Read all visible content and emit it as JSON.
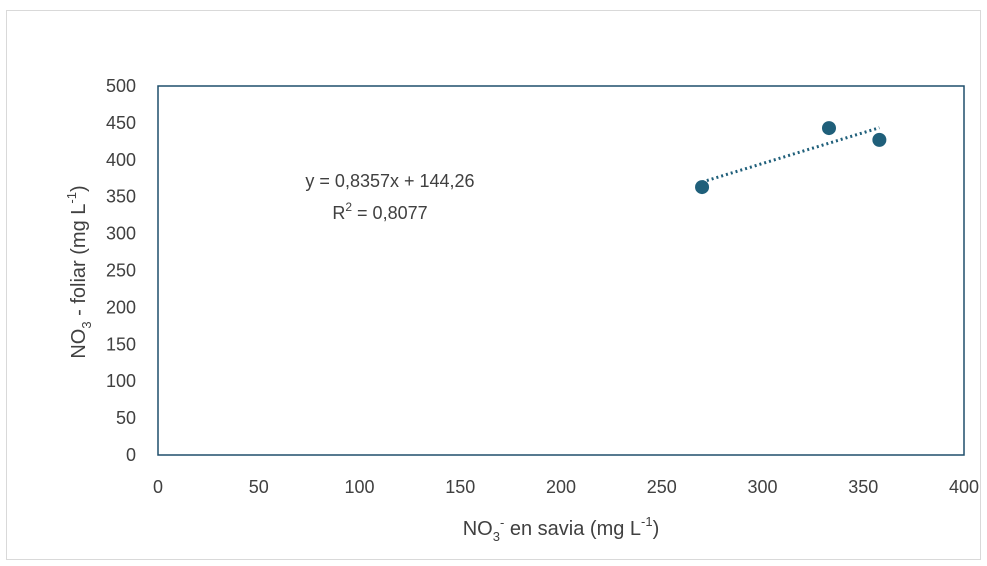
{
  "chart_data": {
    "type": "scatter",
    "x": [
      270,
      333,
      358
    ],
    "y": [
      363,
      443,
      427
    ],
    "xlim": [
      0,
      400
    ],
    "ylim": [
      0,
      500
    ],
    "x_ticks": [
      0,
      50,
      100,
      150,
      200,
      250,
      300,
      350,
      400
    ],
    "y_ticks": [
      0,
      50,
      100,
      150,
      200,
      250,
      300,
      350,
      400,
      450,
      500
    ],
    "xlabel": {
      "main": "NO",
      "sub": "3",
      "sup": "-",
      "rest": " en savia (mg L",
      "unit_sup": "-1",
      "end": ")"
    },
    "ylabel": {
      "main": "NO",
      "sub": "3",
      "rest": " - foliar (mg L",
      "unit_sup": "-1",
      "end": ")"
    },
    "trendline": {
      "type": "linear",
      "slope": 0.8357,
      "intercept": 144.26,
      "x_range": [
        270,
        358
      ],
      "equation": "y = 0,8357x + 144,26",
      "r2_base": "R",
      "r2_sup": "2",
      "r2_value": " = 0,8077"
    },
    "colors": {
      "marker": "#1f5f7a",
      "trendline": "#1f5f7a",
      "plot_border": "#1f4e6b",
      "text": "#404040"
    },
    "grid": false,
    "legend": "none"
  }
}
